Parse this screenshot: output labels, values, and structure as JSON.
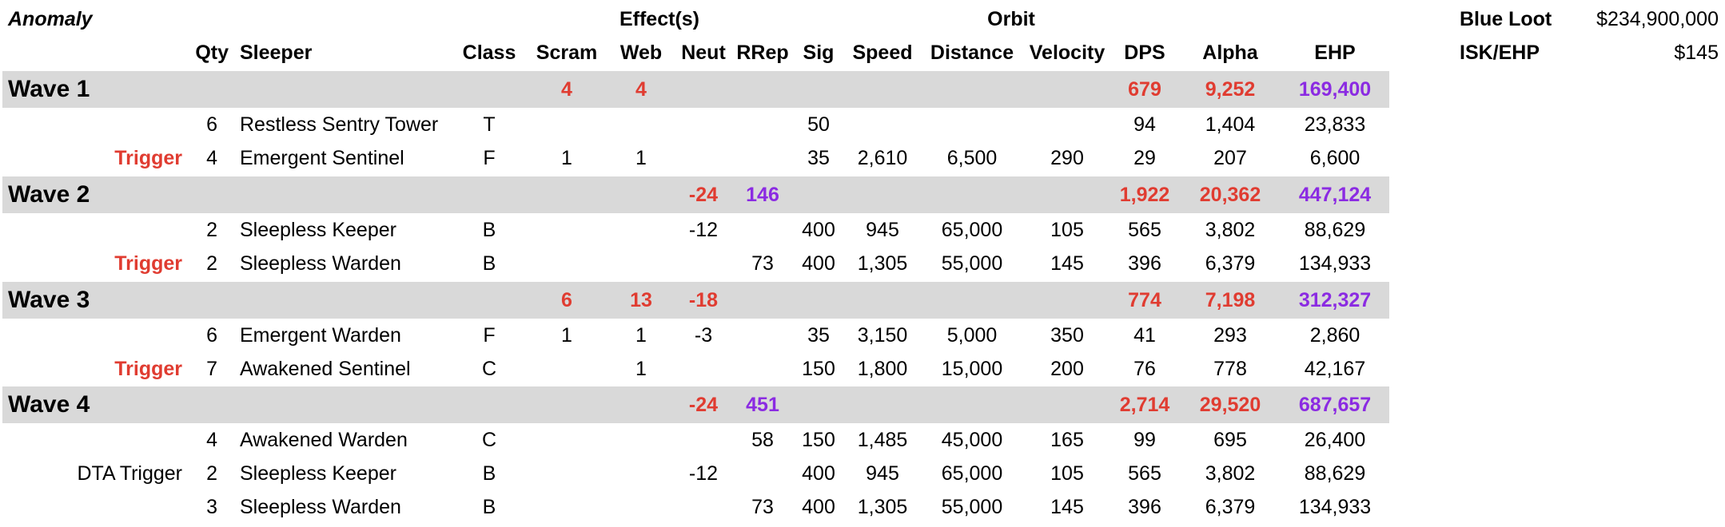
{
  "colors": {
    "red": "#e03c31",
    "purple": "#8b2be2",
    "band": "#d9d9d9"
  },
  "header": {
    "anomaly_label": "Anomaly",
    "effects_label": "Effect(s)",
    "orbit_label": "Orbit",
    "columns": {
      "qty": "Qty",
      "sleeper": "Sleeper",
      "class": "Class",
      "scram": "Scram",
      "web": "Web",
      "neut": "Neut",
      "rrep": "RRep",
      "sig": "Sig",
      "speed": "Speed",
      "distance": "Distance",
      "velocity": "Velocity",
      "dps": "DPS",
      "alpha": "Alpha",
      "ehp": "EHP"
    }
  },
  "summary": {
    "blue_loot_label": "Blue Loot",
    "blue_loot_value": "$234,900,000",
    "isk_ehp_label": "ISK/EHP",
    "isk_ehp_value": "$145"
  },
  "waves": [
    {
      "label": "Wave 1",
      "totals": {
        "scram": "4",
        "web": "4",
        "neut": "",
        "rrep": "",
        "dps": "679",
        "alpha": "9,252",
        "ehp": "169,400"
      },
      "rows": [
        {
          "trigger": "",
          "qty": "6",
          "sleeper": "Restless Sentry Tower",
          "class": "T",
          "scram": "",
          "web": "",
          "neut": "",
          "rrep": "",
          "sig": "50",
          "speed": "",
          "distance": "",
          "velocity": "",
          "dps": "94",
          "alpha": "1,404",
          "ehp": "23,833"
        },
        {
          "trigger": "Trigger",
          "qty": "4",
          "sleeper": "Emergent Sentinel",
          "class": "F",
          "scram": "1",
          "web": "1",
          "neut": "",
          "rrep": "",
          "sig": "35",
          "speed": "2,610",
          "distance": "6,500",
          "velocity": "290",
          "dps": "29",
          "alpha": "207",
          "ehp": "6,600"
        }
      ]
    },
    {
      "label": "Wave 2",
      "totals": {
        "scram": "",
        "web": "",
        "neut": "-24",
        "rrep": "146",
        "dps": "1,922",
        "alpha": "20,362",
        "ehp": "447,124"
      },
      "rows": [
        {
          "trigger": "",
          "qty": "2",
          "sleeper": "Sleepless Keeper",
          "class": "B",
          "scram": "",
          "web": "",
          "neut": "-12",
          "rrep": "",
          "sig": "400",
          "speed": "945",
          "distance": "65,000",
          "velocity": "105",
          "dps": "565",
          "alpha": "3,802",
          "ehp": "88,629"
        },
        {
          "trigger": "Trigger",
          "qty": "2",
          "sleeper": "Sleepless Warden",
          "class": "B",
          "scram": "",
          "web": "",
          "neut": "",
          "rrep": "73",
          "sig": "400",
          "speed": "1,305",
          "distance": "55,000",
          "velocity": "145",
          "dps": "396",
          "alpha": "6,379",
          "ehp": "134,933"
        }
      ]
    },
    {
      "label": "Wave 3",
      "totals": {
        "scram": "6",
        "web": "13",
        "neut": "-18",
        "rrep": "",
        "dps": "774",
        "alpha": "7,198",
        "ehp": "312,327"
      },
      "rows": [
        {
          "trigger": "",
          "qty": "6",
          "sleeper": "Emergent Warden",
          "class": "F",
          "scram": "1",
          "web": "1",
          "neut": "-3",
          "rrep": "",
          "sig": "35",
          "speed": "3,150",
          "distance": "5,000",
          "velocity": "350",
          "dps": "41",
          "alpha": "293",
          "ehp": "2,860"
        },
        {
          "trigger": "Trigger",
          "qty": "7",
          "sleeper": "Awakened Sentinel",
          "class": "C",
          "scram": "",
          "web": "1",
          "neut": "",
          "rrep": "",
          "sig": "150",
          "speed": "1,800",
          "distance": "15,000",
          "velocity": "200",
          "dps": "76",
          "alpha": "778",
          "ehp": "42,167"
        }
      ]
    },
    {
      "label": "Wave 4",
      "totals": {
        "scram": "",
        "web": "",
        "neut": "-24",
        "rrep": "451",
        "dps": "2,714",
        "alpha": "29,520",
        "ehp": "687,657"
      },
      "rows": [
        {
          "trigger": "",
          "qty": "4",
          "sleeper": "Awakened Warden",
          "class": "C",
          "scram": "",
          "web": "",
          "neut": "",
          "rrep": "58",
          "sig": "150",
          "speed": "1,485",
          "distance": "45,000",
          "velocity": "165",
          "dps": "99",
          "alpha": "695",
          "ehp": "26,400"
        },
        {
          "trigger": "DTA Trigger",
          "qty": "2",
          "sleeper": "Sleepless Keeper",
          "class": "B",
          "scram": "",
          "web": "",
          "neut": "-12",
          "rrep": "",
          "sig": "400",
          "speed": "945",
          "distance": "65,000",
          "velocity": "105",
          "dps": "565",
          "alpha": "3,802",
          "ehp": "88,629"
        },
        {
          "trigger": "",
          "qty": "3",
          "sleeper": "Sleepless Warden",
          "class": "B",
          "scram": "",
          "web": "",
          "neut": "",
          "rrep": "73",
          "sig": "400",
          "speed": "1,305",
          "distance": "55,000",
          "velocity": "145",
          "dps": "396",
          "alpha": "6,379",
          "ehp": "134,933"
        }
      ]
    }
  ]
}
